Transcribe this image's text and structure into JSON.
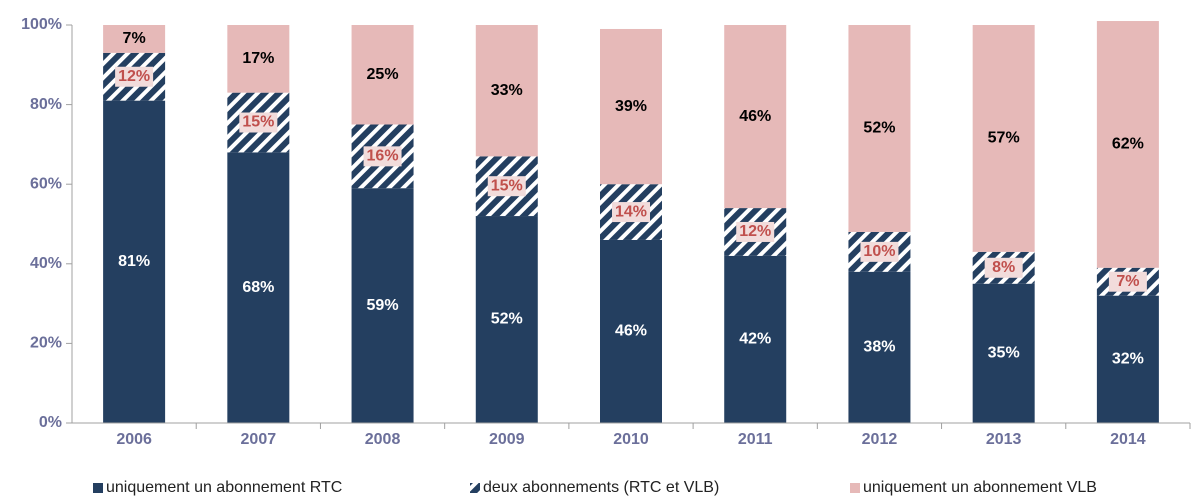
{
  "chart_data": {
    "type": "stacked_bar",
    "categories": [
      "2006",
      "2007",
      "2008",
      "2009",
      "2010",
      "2011",
      "2012",
      "2013",
      "2014"
    ],
    "series": [
      {
        "name": "uniquement un abonnement RTC",
        "color": "#243f60",
        "values": [
          81,
          68,
          59,
          52,
          46,
          42,
          38,
          35,
          32
        ],
        "value_labels": [
          "81%",
          "68%",
          "59%",
          "52%",
          "46%",
          "42%",
          "38%",
          "35%",
          "32%"
        ],
        "label_color": "#ffffff"
      },
      {
        "name": "deux abonnements (RTC et VLB)",
        "color": "#243f60",
        "pattern": "hatch",
        "values": [
          12,
          15,
          16,
          15,
          14,
          12,
          10,
          8,
          7
        ],
        "value_labels": [
          "12%",
          "15%",
          "16%",
          "15%",
          "14%",
          "12%",
          "10%",
          "8%",
          "7%"
        ],
        "label_color": "#c0504d"
      },
      {
        "name": "uniquement un abonnement VLB",
        "color": "#e6b9b8",
        "values": [
          7,
          17,
          25,
          33,
          39,
          46,
          52,
          57,
          62
        ],
        "value_labels": [
          "7%",
          "17%",
          "25%",
          "33%",
          "39%",
          "46%",
          "52%",
          "57%",
          "62%"
        ],
        "label_color": "#000000"
      }
    ],
    "ylim": [
      0,
      100
    ],
    "yticks": [
      {
        "value": 0,
        "label": "0%"
      },
      {
        "value": 20,
        "label": "20%"
      },
      {
        "value": 40,
        "label": "40%"
      },
      {
        "value": 60,
        "label": "60%"
      },
      {
        "value": 80,
        "label": "80%"
      },
      {
        "value": 100,
        "label": "100%"
      }
    ],
    "grid": false,
    "legend": "bottom"
  }
}
